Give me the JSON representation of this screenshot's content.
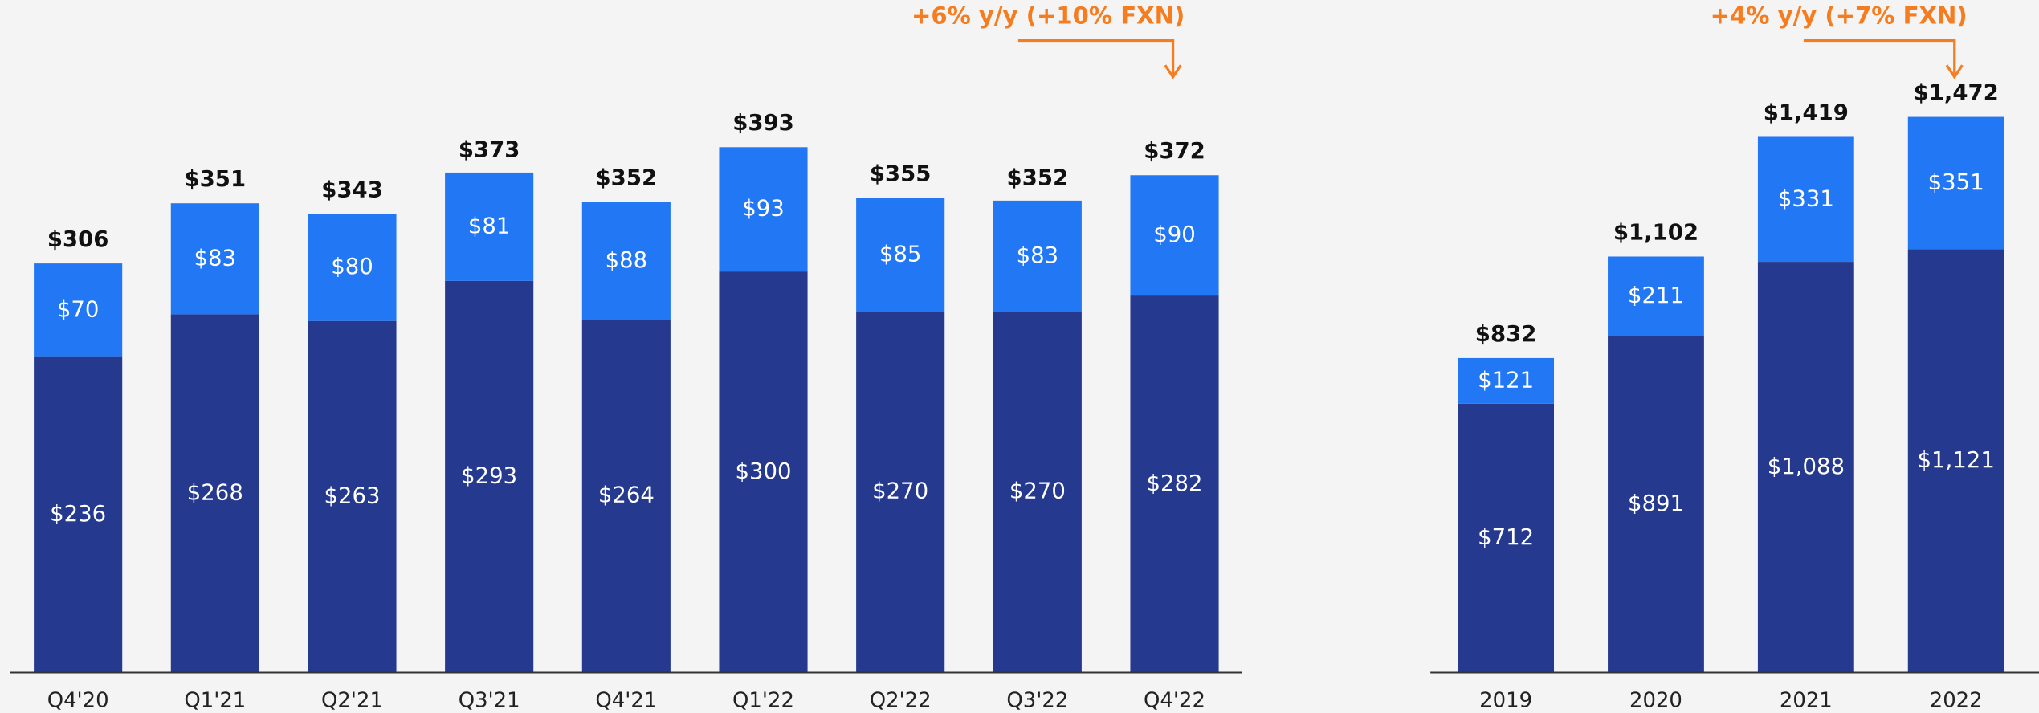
{
  "chart_data": [
    {
      "type": "stacked_bar",
      "categories": [
        "Q4'20",
        "Q1'21",
        "Q2'21",
        "Q3'21",
        "Q4'21",
        "Q1'22",
        "Q2'22",
        "Q3'22",
        "Q4'22"
      ],
      "series": [
        {
          "color": "#253a8e",
          "values": [
            236,
            268,
            263,
            293,
            264,
            300,
            270,
            270,
            282
          ],
          "value_labels": [
            "$236",
            "$268",
            "$263",
            "$293",
            "$264",
            "$300",
            "$270",
            "$270",
            "$282"
          ]
        },
        {
          "color": "#2277f5",
          "values": [
            70,
            83,
            80,
            81,
            88,
            93,
            85,
            83,
            90
          ],
          "value_labels": [
            "$70",
            "$83",
            "$80",
            "$81",
            "$88",
            "$93",
            "$85",
            "$83",
            "$90"
          ]
        }
      ],
      "totals": [
        306,
        351,
        343,
        373,
        352,
        393,
        355,
        352,
        372
      ],
      "total_labels": [
        "$306",
        "$351",
        "$343",
        "$373",
        "$352",
        "$393",
        "$355",
        "$352",
        "$372"
      ],
      "annotation": "+6% y/y (+10% FXN)",
      "ylim": [
        0,
        500
      ]
    },
    {
      "type": "stacked_bar",
      "categories": [
        "2019",
        "2020",
        "2021",
        "2022"
      ],
      "series": [
        {
          "color": "#253a8e",
          "values": [
            712,
            891,
            1088,
            1121
          ],
          "value_labels": [
            "$712",
            "$891",
            "$1,088",
            "$1,121"
          ]
        },
        {
          "color": "#2277f5",
          "values": [
            121,
            211,
            331,
            351
          ],
          "value_labels": [
            "$121",
            "$211",
            "$331",
            "$351"
          ]
        }
      ],
      "totals": [
        832,
        1102,
        1419,
        1472
      ],
      "total_labels": [
        "$832",
        "$1,102",
        "$1,419",
        "$1,472"
      ],
      "annotation": "+4% y/y (+7% FXN)",
      "ylim": [
        0,
        1750
      ]
    }
  ]
}
